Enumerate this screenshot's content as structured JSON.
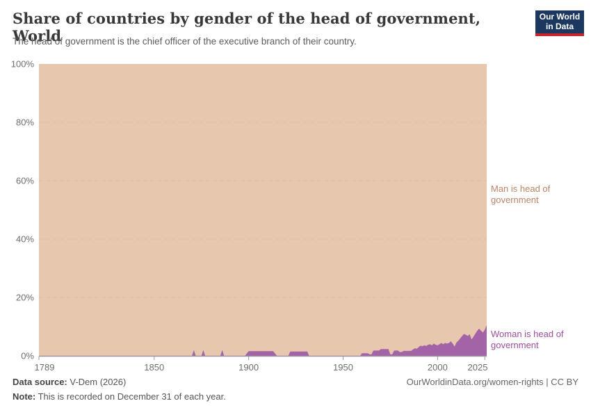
{
  "header": {
    "title": "Share of countries by gender of the head of government, World",
    "subtitle": "The head of government is the chief officer of the executive branch of their country."
  },
  "logo": {
    "line1": "Our World",
    "line2": "in Data",
    "bg_color": "#1d3860",
    "accent_color": "#c5272d"
  },
  "chart_data": {
    "type": "area",
    "stacked": true,
    "title": "Share of countries by gender of the head of government, World",
    "x_range": [
      1789,
      2026
    ],
    "y_range": [
      0,
      100
    ],
    "y_unit": "%",
    "x_ticks": [
      1789,
      1850,
      1900,
      1950,
      2000,
      2025
    ],
    "y_ticks": [
      0,
      20,
      40,
      60,
      80,
      100
    ],
    "grid": "horizontal-dashed",
    "gridline_color": "#d9b79c",
    "axis_line_color": "#a095a5",
    "series": [
      {
        "name": "Woman is head of government",
        "color": "#a264a6",
        "label_color": "#9c4e9d",
        "points": [
          [
            1789,
            0
          ],
          [
            1869,
            0
          ],
          [
            1870,
            0
          ],
          [
            1871,
            2
          ],
          [
            1872,
            0
          ],
          [
            1875,
            0
          ],
          [
            1876,
            2
          ],
          [
            1877,
            0
          ],
          [
            1885,
            0
          ],
          [
            1886,
            2
          ],
          [
            1887,
            0
          ],
          [
            1898,
            0
          ],
          [
            1900,
            1.6
          ],
          [
            1913,
            1.6
          ],
          [
            1915,
            0
          ],
          [
            1921,
            0
          ],
          [
            1922,
            1.5
          ],
          [
            1931,
            1.5
          ],
          [
            1932,
            0
          ],
          [
            1959,
            0
          ],
          [
            1960,
            0.9
          ],
          [
            1963,
            0.9
          ],
          [
            1964,
            0.5
          ],
          [
            1965,
            0.5
          ],
          [
            1966,
            1.8
          ],
          [
            1969,
            1.8
          ],
          [
            1970,
            2.3
          ],
          [
            1974,
            2.3
          ],
          [
            1975,
            0.5
          ],
          [
            1976,
            0.5
          ],
          [
            1977,
            1.8
          ],
          [
            1979,
            1.8
          ],
          [
            1980,
            1.3
          ],
          [
            1981,
            1.3
          ],
          [
            1982,
            1.7
          ],
          [
            1986,
            1.7
          ],
          [
            1987,
            2.2
          ],
          [
            1988,
            2.6
          ],
          [
            1989,
            2.4
          ],
          [
            1990,
            3.0
          ],
          [
            1991,
            3.5
          ],
          [
            1992,
            3.3
          ],
          [
            1993,
            3.6
          ],
          [
            1994,
            3.4
          ],
          [
            1995,
            3.8
          ],
          [
            1996,
            4.0
          ],
          [
            1997,
            3.6
          ],
          [
            1998,
            4.2
          ],
          [
            1999,
            3.8
          ],
          [
            2000,
            3.6
          ],
          [
            2001,
            4.0
          ],
          [
            2002,
            4.4
          ],
          [
            2003,
            4.0
          ],
          [
            2004,
            4.4
          ],
          [
            2005,
            4.2
          ],
          [
            2006,
            4.4
          ],
          [
            2007,
            5.0
          ],
          [
            2008,
            4.2
          ],
          [
            2009,
            3.2
          ],
          [
            2010,
            4.6
          ],
          [
            2011,
            5.2
          ],
          [
            2012,
            6.0
          ],
          [
            2013,
            6.8
          ],
          [
            2014,
            7.5
          ],
          [
            2015,
            7.2
          ],
          [
            2016,
            6.8
          ],
          [
            2017,
            7.4
          ],
          [
            2018,
            5.6
          ],
          [
            2019,
            6.6
          ],
          [
            2020,
            7.6
          ],
          [
            2021,
            8.6
          ],
          [
            2022,
            9.3
          ],
          [
            2023,
            8.6
          ],
          [
            2024,
            8.0
          ],
          [
            2025,
            9.0
          ],
          [
            2026,
            10.5
          ]
        ]
      },
      {
        "name": "Man is head of government",
        "color": "#e7c7ae",
        "label_color": "#bc8467",
        "remainder_to_100": true
      }
    ]
  },
  "footer": {
    "datasource_label": "Data source:",
    "datasource_value": " V-Dem (2026)",
    "note_label": "Note:",
    "note_value": " This is recorded on December 31 of each year.",
    "attribution": "OurWorldinData.org/women-rights | CC BY"
  }
}
